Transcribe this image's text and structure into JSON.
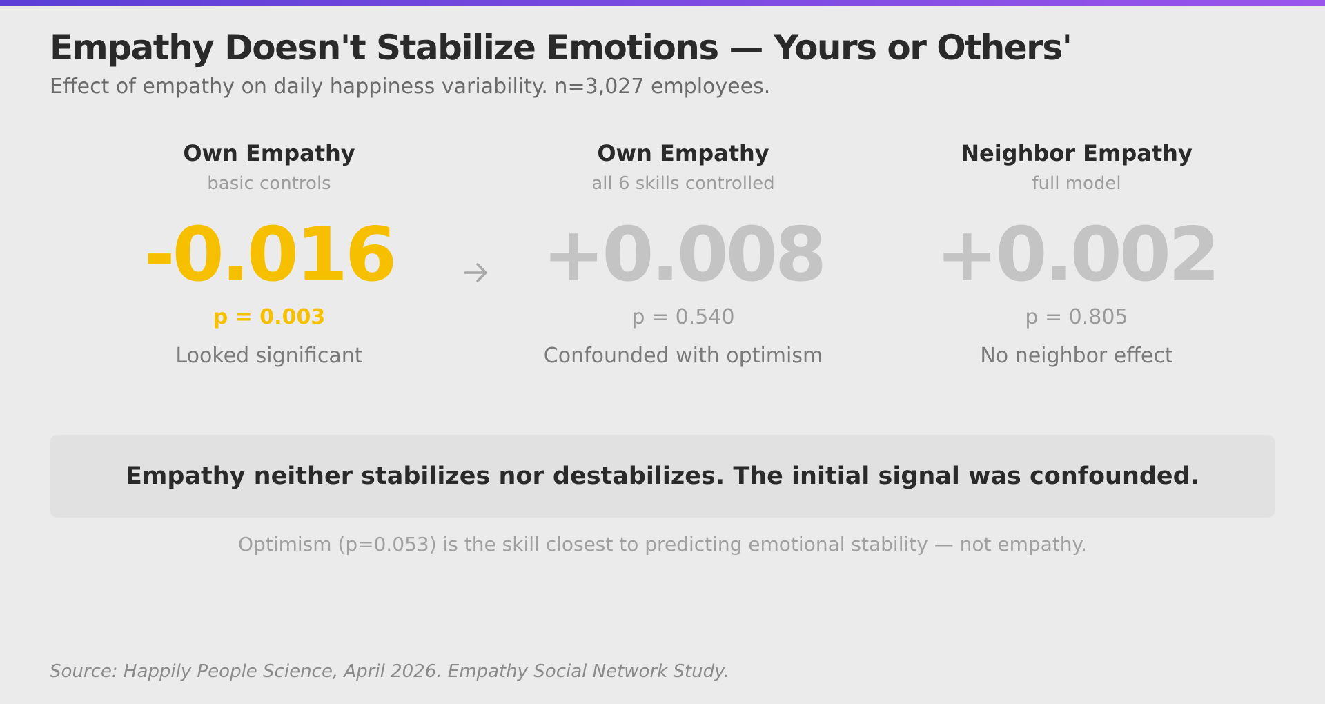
{
  "header": {
    "title": "Empathy Doesn't Stabilize Emotions — Yours or Others'",
    "subtitle": "Effect of empathy on daily happiness variability. n=3,027 employees."
  },
  "columns": [
    {
      "title": "Own Empathy",
      "subtitle": "basic controls",
      "value": "-0.016",
      "p_value": "p = 0.003",
      "note": "Looked significant",
      "highlighted": true
    },
    {
      "title": "Own Empathy",
      "subtitle": "all 6 skills controlled",
      "value": "+0.008",
      "p_value": "p = 0.540",
      "note": "Confounded with optimism",
      "highlighted": false
    },
    {
      "title": "Neighbor Empathy",
      "subtitle": "full model",
      "value": "+0.002",
      "p_value": "p = 0.805",
      "note": "No neighbor effect",
      "highlighted": false
    }
  ],
  "arrow_icon": "arrow-right-icon",
  "callout": {
    "text": "Empathy neither stabilizes nor destabilizes. The initial signal was confounded."
  },
  "footnote": "Optimism (p=0.053) is the skill closest to predicting emotional stability — not empathy.",
  "source": "Source: Happily People Science, April 2026. Empathy Social Network Study.",
  "colors": {
    "background": "#ebebeb",
    "highlight": "#f6c000",
    "muted": "#c4c4c4",
    "accent_gradient_start": "#5b3fd6",
    "accent_gradient_end": "#9a55ec"
  }
}
